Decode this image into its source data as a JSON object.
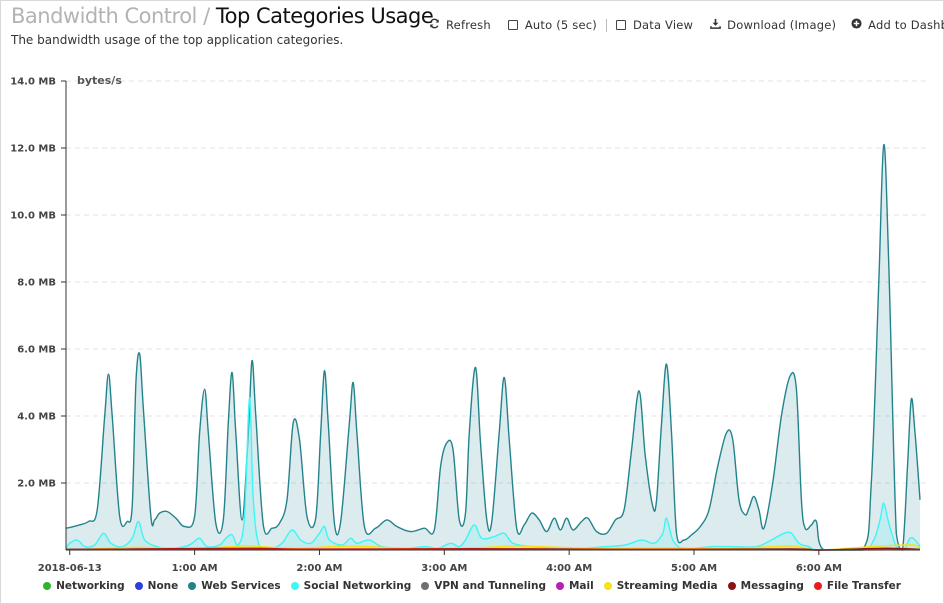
{
  "header": {
    "breadcrumb_parent": "Bandwidth Control",
    "separator": "/",
    "title": "Top Categories Usage",
    "subtitle": "The bandwidth usage of the top application categories."
  },
  "toolbar": {
    "refresh_label": "Refresh",
    "auto_label": "Auto (5 sec)",
    "data_view_label": "Data View",
    "download_label": "Download (Image)",
    "add_label": "Add to Dashbo"
  },
  "chart_data": {
    "type": "area",
    "ylabel": "bytes/s",
    "y_ticks": [
      "14.0 MB",
      "12.0 MB",
      "10.0 MB",
      "8.0 MB",
      "6.0 MB",
      "4.0 MB",
      "2.0 MB"
    ],
    "ylim": [
      0,
      14.0
    ],
    "y_unit": "MB",
    "x_ticks": [
      "2018-06-13",
      "1:00 AM",
      "2:00 AM",
      "3:00 AM",
      "4:00 AM",
      "5:00 AM",
      "6:00 AM"
    ],
    "x_tick_hours": [
      0,
      1,
      2,
      3,
      4,
      5,
      6
    ],
    "xlim": [
      -0.03,
      6.81
    ],
    "grid": true,
    "legend_position": "bottom",
    "series": [
      {
        "name": "Networking",
        "color": "#2db52d",
        "points": []
      },
      {
        "name": "None",
        "color": "#2b3fdc",
        "points": []
      },
      {
        "name": "Web Services",
        "color": "#23838c",
        "points": [
          [
            -0.03,
            0.65
          ],
          [
            0.05,
            0.72
          ],
          [
            0.15,
            0.85
          ],
          [
            0.22,
            1.2
          ],
          [
            0.28,
            4.0
          ],
          [
            0.31,
            5.25
          ],
          [
            0.34,
            4.0
          ],
          [
            0.4,
            1.0
          ],
          [
            0.46,
            0.85
          ],
          [
            0.5,
            1.3
          ],
          [
            0.53,
            5.0
          ],
          [
            0.56,
            5.85
          ],
          [
            0.59,
            4.2
          ],
          [
            0.65,
            1.0
          ],
          [
            0.68,
            0.9
          ],
          [
            0.72,
            1.1
          ],
          [
            0.78,
            1.15
          ],
          [
            0.85,
            0.95
          ],
          [
            0.92,
            0.7
          ],
          [
            1.0,
            1.0
          ],
          [
            1.04,
            3.5
          ],
          [
            1.08,
            4.8
          ],
          [
            1.11,
            3.5
          ],
          [
            1.17,
            0.8
          ],
          [
            1.23,
            0.9
          ],
          [
            1.27,
            3.8
          ],
          [
            1.3,
            5.3
          ],
          [
            1.33,
            3.5
          ],
          [
            1.38,
            0.9
          ],
          [
            1.43,
            3.5
          ],
          [
            1.46,
            5.65
          ],
          [
            1.49,
            4.0
          ],
          [
            1.55,
            0.75
          ],
          [
            1.62,
            0.65
          ],
          [
            1.68,
            0.8
          ],
          [
            1.74,
            1.5
          ],
          [
            1.79,
            3.8
          ],
          [
            1.84,
            3.3
          ],
          [
            1.9,
            1.0
          ],
          [
            1.97,
            0.95
          ],
          [
            2.01,
            3.5
          ],
          [
            2.04,
            5.35
          ],
          [
            2.07,
            3.8
          ],
          [
            2.12,
            0.8
          ],
          [
            2.17,
            0.85
          ],
          [
            2.24,
            3.8
          ],
          [
            2.27,
            5.0
          ],
          [
            2.3,
            3.5
          ],
          [
            2.36,
            0.7
          ],
          [
            2.45,
            0.65
          ],
          [
            2.54,
            0.9
          ],
          [
            2.62,
            0.7
          ],
          [
            2.73,
            0.55
          ],
          [
            2.84,
            0.65
          ],
          [
            2.92,
            0.6
          ],
          [
            2.97,
            2.5
          ],
          [
            3.02,
            3.2
          ],
          [
            3.07,
            3.0
          ],
          [
            3.12,
            0.9
          ],
          [
            3.17,
            1.1
          ],
          [
            3.2,
            3.5
          ],
          [
            3.25,
            5.45
          ],
          [
            3.29,
            3.2
          ],
          [
            3.34,
            0.9
          ],
          [
            3.38,
            0.85
          ],
          [
            3.44,
            3.5
          ],
          [
            3.48,
            5.15
          ],
          [
            3.52,
            3.3
          ],
          [
            3.58,
            0.65
          ],
          [
            3.64,
            0.75
          ],
          [
            3.7,
            1.1
          ],
          [
            3.76,
            0.9
          ],
          [
            3.82,
            0.55
          ],
          [
            3.88,
            0.95
          ],
          [
            3.93,
            0.6
          ],
          [
            3.98,
            0.95
          ],
          [
            4.03,
            0.6
          ],
          [
            4.1,
            0.85
          ],
          [
            4.15,
            0.95
          ],
          [
            4.22,
            0.55
          ],
          [
            4.3,
            0.5
          ],
          [
            4.37,
            0.9
          ],
          [
            4.44,
            1.2
          ],
          [
            4.5,
            3.0
          ],
          [
            4.56,
            4.75
          ],
          [
            4.61,
            2.8
          ],
          [
            4.67,
            1.3
          ],
          [
            4.7,
            1.5
          ],
          [
            4.74,
            3.8
          ],
          [
            4.78,
            5.55
          ],
          [
            4.82,
            3.5
          ],
          [
            4.86,
            0.5
          ],
          [
            4.92,
            0.3
          ],
          [
            4.98,
            0.45
          ],
          [
            5.05,
            0.7
          ],
          [
            5.12,
            1.2
          ],
          [
            5.19,
            2.5
          ],
          [
            5.26,
            3.5
          ],
          [
            5.31,
            3.3
          ],
          [
            5.36,
            1.5
          ],
          [
            5.41,
            1.05
          ],
          [
            5.44,
            1.25
          ],
          [
            5.48,
            1.6
          ],
          [
            5.52,
            1.2
          ],
          [
            5.56,
            0.65
          ],
          [
            5.63,
            2.0
          ],
          [
            5.7,
            4.0
          ],
          [
            5.77,
            5.2
          ],
          [
            5.82,
            4.8
          ],
          [
            5.86,
            1.5
          ],
          [
            5.89,
            0.65
          ],
          [
            5.94,
            0.75
          ],
          [
            5.98,
            0.85
          ],
          [
            6.04,
            0.0
          ],
          [
            6.35,
            0.0
          ],
          [
            6.42,
            2.0
          ],
          [
            6.48,
            8.0
          ],
          [
            6.52,
            12.1
          ],
          [
            6.56,
            8.5
          ],
          [
            6.62,
            0.5
          ],
          [
            6.67,
            0.0
          ],
          [
            6.71,
            2.5
          ],
          [
            6.74,
            4.5
          ],
          [
            6.77,
            3.5
          ],
          [
            6.81,
            1.5
          ]
        ]
      },
      {
        "name": "Social Networking",
        "color": "#3ff5f5",
        "points": [
          [
            -0.03,
            0.05
          ],
          [
            0.0,
            0.2
          ],
          [
            0.06,
            0.3
          ],
          [
            0.12,
            0.1
          ],
          [
            0.2,
            0.15
          ],
          [
            0.27,
            0.5
          ],
          [
            0.33,
            0.2
          ],
          [
            0.42,
            0.1
          ],
          [
            0.5,
            0.35
          ],
          [
            0.55,
            0.85
          ],
          [
            0.6,
            0.3
          ],
          [
            0.7,
            0.1
          ],
          [
            0.8,
            0.05
          ],
          [
            0.92,
            0.1
          ],
          [
            0.98,
            0.2
          ],
          [
            1.04,
            0.35
          ],
          [
            1.1,
            0.1
          ],
          [
            1.2,
            0.15
          ],
          [
            1.25,
            0.35
          ],
          [
            1.3,
            0.45
          ],
          [
            1.35,
            0.15
          ],
          [
            1.4,
            1.0
          ],
          [
            1.44,
            4.55
          ],
          [
            1.47,
            1.5
          ],
          [
            1.52,
            0.1
          ],
          [
            1.62,
            0.05
          ],
          [
            1.7,
            0.2
          ],
          [
            1.78,
            0.6
          ],
          [
            1.85,
            0.3
          ],
          [
            1.93,
            0.2
          ],
          [
            2.0,
            0.5
          ],
          [
            2.04,
            0.7
          ],
          [
            2.08,
            0.3
          ],
          [
            2.18,
            0.15
          ],
          [
            2.25,
            0.35
          ],
          [
            2.3,
            0.2
          ],
          [
            2.4,
            0.3
          ],
          [
            2.5,
            0.1
          ],
          [
            2.7,
            0.05
          ],
          [
            2.85,
            0.1
          ],
          [
            2.95,
            0.05
          ],
          [
            3.05,
            0.2
          ],
          [
            3.12,
            0.1
          ],
          [
            3.17,
            0.3
          ],
          [
            3.24,
            0.75
          ],
          [
            3.3,
            0.35
          ],
          [
            3.4,
            0.4
          ],
          [
            3.48,
            0.5
          ],
          [
            3.55,
            0.2
          ],
          [
            3.7,
            0.1
          ],
          [
            3.9,
            0.05
          ],
          [
            4.1,
            0.05
          ],
          [
            4.3,
            0.1
          ],
          [
            4.45,
            0.15
          ],
          [
            4.58,
            0.3
          ],
          [
            4.68,
            0.2
          ],
          [
            4.75,
            0.5
          ],
          [
            4.78,
            0.95
          ],
          [
            4.83,
            0.3
          ],
          [
            4.9,
            0.05
          ],
          [
            5.0,
            0.05
          ],
          [
            5.15,
            0.1
          ],
          [
            5.3,
            0.1
          ],
          [
            5.5,
            0.1
          ],
          [
            5.62,
            0.3
          ],
          [
            5.72,
            0.5
          ],
          [
            5.78,
            0.5
          ],
          [
            5.84,
            0.2
          ],
          [
            5.92,
            0.1
          ],
          [
            6.0,
            0.0
          ],
          [
            6.35,
            0.0
          ],
          [
            6.44,
            0.3
          ],
          [
            6.49,
            0.9
          ],
          [
            6.52,
            1.4
          ],
          [
            6.56,
            0.8
          ],
          [
            6.62,
            0.1
          ],
          [
            6.68,
            0.0
          ],
          [
            6.73,
            0.35
          ],
          [
            6.77,
            0.3
          ],
          [
            6.81,
            0.1
          ]
        ]
      },
      {
        "name": "VPN and Tunneling",
        "color": "#707070",
        "points": []
      },
      {
        "name": "Mail",
        "color": "#b521b5",
        "points": []
      },
      {
        "name": "Streaming Media",
        "color": "#f5e11c",
        "points": [
          [
            -0.03,
            0.0
          ],
          [
            0.3,
            0.05
          ],
          [
            0.55,
            0.08
          ],
          [
            1.0,
            0.05
          ],
          [
            1.3,
            0.1
          ],
          [
            1.45,
            0.12
          ],
          [
            1.8,
            0.05
          ],
          [
            2.25,
            0.12
          ],
          [
            2.7,
            0.05
          ],
          [
            3.2,
            0.06
          ],
          [
            3.45,
            0.1
          ],
          [
            3.6,
            0.12
          ],
          [
            4.2,
            0.05
          ],
          [
            4.8,
            0.06
          ],
          [
            5.3,
            0.04
          ],
          [
            5.78,
            0.12
          ],
          [
            6.0,
            0.0
          ],
          [
            6.5,
            0.12
          ],
          [
            6.75,
            0.15
          ],
          [
            6.81,
            0.05
          ]
        ]
      },
      {
        "name": "Messaging",
        "color": "#8b1313",
        "points": [
          [
            -0.03,
            0.02
          ],
          [
            0.5,
            0.03
          ],
          [
            1.45,
            0.05
          ],
          [
            2.0,
            0.02
          ],
          [
            3.25,
            0.04
          ],
          [
            4.5,
            0.02
          ],
          [
            5.78,
            0.03
          ],
          [
            6.0,
            0.0
          ],
          [
            6.52,
            0.05
          ],
          [
            6.81,
            0.02
          ]
        ]
      },
      {
        "name": "File Transfer",
        "color": "#e81c1c",
        "points": [
          [
            -0.03,
            0.01
          ],
          [
            1.0,
            0.02
          ],
          [
            2.3,
            0.03
          ],
          [
            3.5,
            0.02
          ],
          [
            5.0,
            0.02
          ],
          [
            6.0,
            0.0
          ],
          [
            6.81,
            0.01
          ]
        ]
      }
    ]
  }
}
